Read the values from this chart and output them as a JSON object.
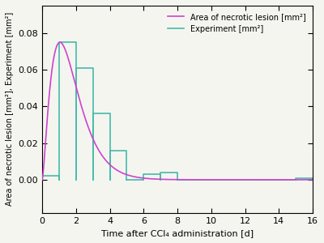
{
  "title": "",
  "xlabel": "Time after CCl₄ administration [d]",
  "ylabel": "Area of necrotic lesion [mm²], Experiment [mm²]",
  "xlim": [
    0,
    16
  ],
  "ylim": [
    -0.018,
    0.095
  ],
  "xticks": [
    0,
    2,
    4,
    6,
    8,
    10,
    12,
    14,
    16
  ],
  "yticks": [
    0.0,
    0.02,
    0.04,
    0.06,
    0.08
  ],
  "curve_color": "#cc44cc",
  "bar_color": "#44bbaa",
  "legend_curve": "Area of necrotic lesion [mm²]",
  "legend_bar": "Experiment [mm²]",
  "bar_edges": [
    0,
    1,
    2,
    3,
    4,
    5,
    6,
    7,
    8,
    15,
    16
  ],
  "bar_heights": [
    0.002,
    0.075,
    0.061,
    0.036,
    0.016,
    0.0,
    0.003,
    0.004,
    0.0,
    0.001
  ],
  "background_color": "#f5f5f0",
  "grid": false
}
